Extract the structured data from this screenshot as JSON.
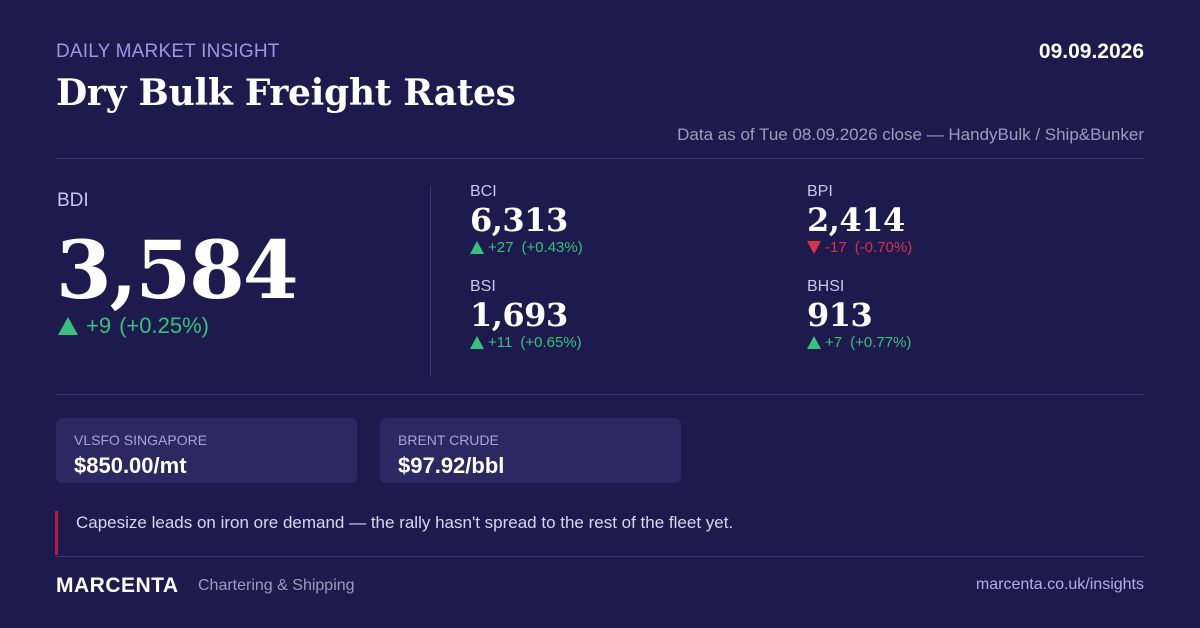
{
  "header": {
    "eyebrow": "DAILY MARKET INSIGHT",
    "date": "09.09.2026",
    "title": "Dry Bulk Freight Rates",
    "as_of": "Data as of Tue 08.09.2026 close — HandyBulk / Ship&Bunker"
  },
  "bdi": {
    "label": "BDI",
    "value": "3,584",
    "change": "+9",
    "pct": "(+0.25%)",
    "direction": "up"
  },
  "indices": [
    {
      "label": "BCI",
      "value": "6,313",
      "change": "+27",
      "pct": "(+0.43%)",
      "direction": "up"
    },
    {
      "label": "BPI",
      "value": "2,414",
      "change": "-17",
      "pct": "(-0.70%)",
      "direction": "down"
    },
    {
      "label": "BSI",
      "value": "1,693",
      "change": "+11",
      "pct": "(+0.65%)",
      "direction": "up"
    },
    {
      "label": "BHSI",
      "value": "913",
      "change": "+7",
      "pct": "(+0.77%)",
      "direction": "up"
    }
  ],
  "fuel": [
    {
      "label": "VLSFO SINGAPORE",
      "value": "$850.00/mt"
    },
    {
      "label": "BRENT CRUDE",
      "value": "$97.92/bbl"
    }
  ],
  "commentary": "Capesize leads on iron ore demand — the rally hasn't spread to the rest of the fleet yet.",
  "footer": {
    "brand": "MARCENTA",
    "tagline": "Chartering & Shipping",
    "link": "marcenta.co.uk/insights"
  },
  "colors": {
    "background": "#1f1a4e",
    "up": "#35c27a",
    "down": "#d9334a",
    "accent": "#9d97e3"
  },
  "icons": {
    "up": "triangle-up-icon",
    "down": "triangle-down-icon"
  }
}
